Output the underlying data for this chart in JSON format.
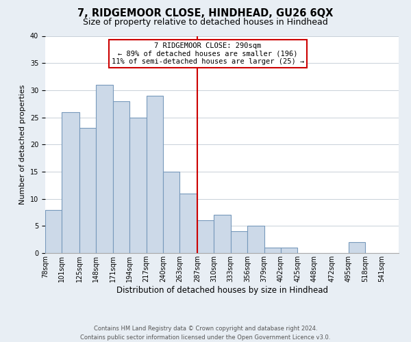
{
  "title": "7, RIDGEMOOR CLOSE, HINDHEAD, GU26 6QX",
  "subtitle": "Size of property relative to detached houses in Hindhead",
  "xlabel": "Distribution of detached houses by size in Hindhead",
  "ylabel": "Number of detached properties",
  "bin_labels": [
    "78sqm",
    "101sqm",
    "125sqm",
    "148sqm",
    "171sqm",
    "194sqm",
    "217sqm",
    "240sqm",
    "263sqm",
    "287sqm",
    "310sqm",
    "333sqm",
    "356sqm",
    "379sqm",
    "402sqm",
    "425sqm",
    "448sqm",
    "472sqm",
    "495sqm",
    "518sqm",
    "541sqm"
  ],
  "bin_edges": [
    78,
    101,
    125,
    148,
    171,
    194,
    217,
    240,
    263,
    287,
    310,
    333,
    356,
    379,
    402,
    425,
    448,
    472,
    495,
    518,
    541
  ],
  "bar_heights": [
    8,
    26,
    23,
    31,
    28,
    25,
    29,
    15,
    11,
    6,
    7,
    4,
    5,
    1,
    1,
    0,
    0,
    0,
    2,
    0,
    0
  ],
  "bar_color": "#ccd9e8",
  "bar_edge_color": "#7799bb",
  "reference_line_x": 287,
  "reference_line_color": "#cc0000",
  "annotation_title": "7 RIDGEMOOR CLOSE: 290sqm",
  "annotation_line1": "← 89% of detached houses are smaller (196)",
  "annotation_line2": "11% of semi-detached houses are larger (25) →",
  "annotation_box_facecolor": "#ffffff",
  "annotation_box_edgecolor": "#cc0000",
  "ylim": [
    0,
    40
  ],
  "yticks": [
    0,
    5,
    10,
    15,
    20,
    25,
    30,
    35,
    40
  ],
  "footer1": "Contains HM Land Registry data © Crown copyright and database right 2024.",
  "footer2": "Contains public sector information licensed under the Open Government Licence v3.0.",
  "fig_facecolor": "#e8eef4",
  "plot_facecolor": "#ffffff",
  "grid_color": "#c8d0d8",
  "title_fontsize": 10.5,
  "subtitle_fontsize": 9,
  "ylabel_fontsize": 8,
  "xlabel_fontsize": 8.5,
  "tick_fontsize": 7,
  "footer_fontsize": 6,
  "annot_fontsize": 7.5
}
